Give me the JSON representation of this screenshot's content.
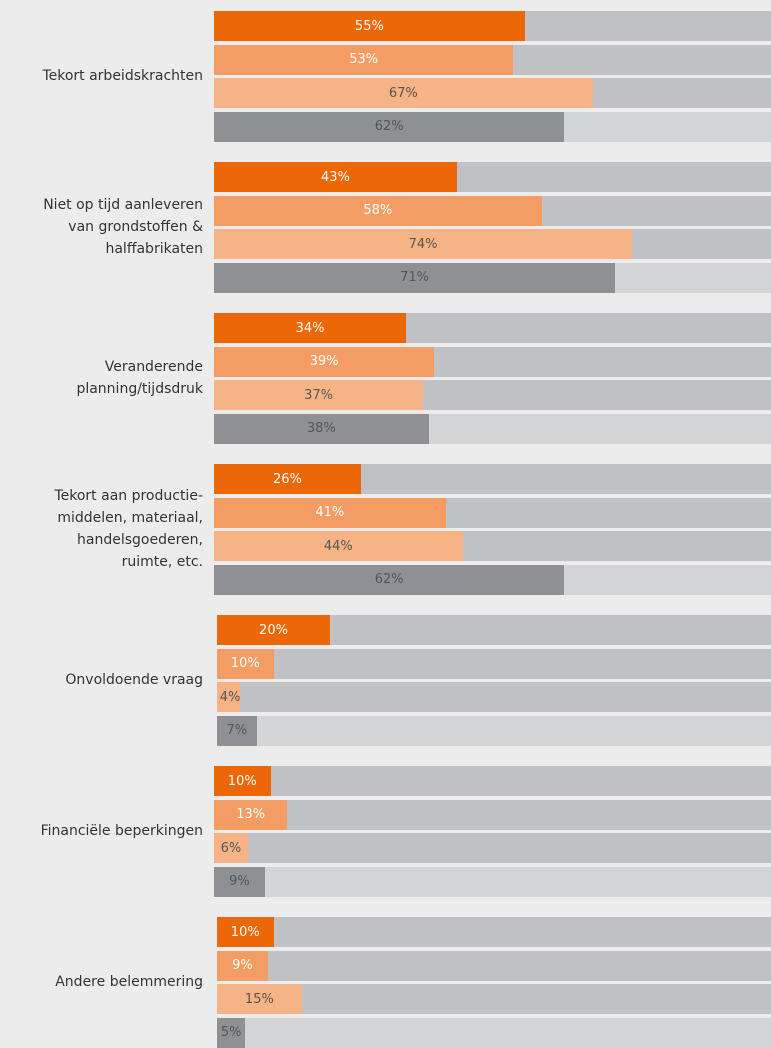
{
  "chart_data": {
    "type": "bar",
    "orientation": "horizontal",
    "categories": [
      "Tekort arbeidskrachten",
      "Niet op tijd aanleveren van grondstoffen & halffabrikaten",
      "Veranderende planning/tijdsdruk",
      "Tekort aan productie-middelen, materiaal, handelsgoederen, ruimte, etc.",
      "Onvoldoende vraag",
      "Financiële beperkingen",
      "Andere belemmering"
    ],
    "category_label_lines": [
      [
        "Tekort arbeidskrachten"
      ],
      [
        "Niet op tijd aanleveren",
        "van grondstoffen &",
        "halffabrikaten"
      ],
      [
        "Veranderende",
        "planning/tijdsdruk"
      ],
      [
        "Tekort aan productie-",
        "middelen, materiaal,",
        "handelsgoederen,",
        "ruimte, etc."
      ],
      [
        "Onvoldoende vraag"
      ],
      [
        "Financiële beperkingen"
      ],
      [
        "Andere belemmering"
      ]
    ],
    "series": [
      {
        "color": "#ec6707",
        "values": [
          55,
          43,
          34,
          26,
          20,
          10,
          10
        ],
        "labels": [
          "55%",
          "43%",
          "34%",
          "26%",
          "20%",
          "10%",
          "10%"
        ]
      },
      {
        "color": "#f39c63",
        "values": [
          53,
          58,
          39,
          41,
          10,
          13,
          9
        ],
        "labels": [
          "53%",
          "58%",
          "39%",
          "41%",
          "10%",
          "13%",
          "9%"
        ]
      },
      {
        "color": "#f6b486",
        "values": [
          67,
          74,
          37,
          44,
          4,
          6,
          15
        ],
        "labels": [
          "67%",
          "74%",
          "37%",
          "44%",
          "4%",
          "6%",
          "15%"
        ]
      },
      {
        "color": "#8e9093",
        "values": [
          62,
          71,
          38,
          62,
          7,
          9,
          5
        ],
        "labels": [
          "62%",
          "71%",
          "38%",
          "62%",
          "7%",
          "9%",
          "5%"
        ]
      }
    ],
    "track_colors": [
      "#c0c1c4",
      "#c0c1c4",
      "#c0c1c4",
      "#d3d4d6"
    ],
    "xlim": [
      0,
      100
    ],
    "grid": false,
    "legend": "none"
  }
}
